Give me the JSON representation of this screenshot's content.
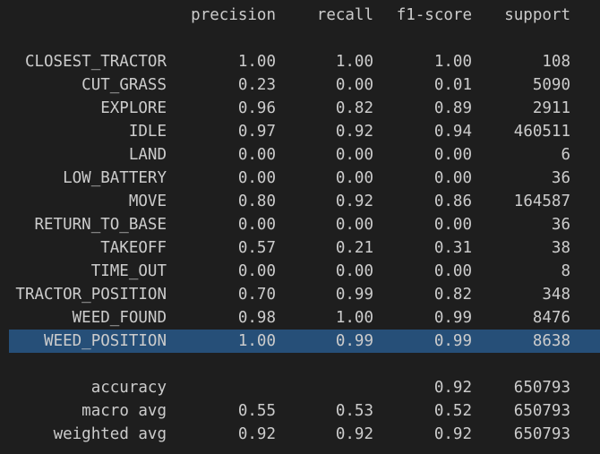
{
  "header": {
    "precision": "precision",
    "recall": "recall",
    "f1": "f1-score",
    "support": "support"
  },
  "rows": [
    {
      "label": "CLOSEST_TRACTOR",
      "precision": "1.00",
      "recall": "1.00",
      "f1": "1.00",
      "support": "108"
    },
    {
      "label": "CUT_GRASS",
      "precision": "0.23",
      "recall": "0.00",
      "f1": "0.01",
      "support": "5090"
    },
    {
      "label": "EXPLORE",
      "precision": "0.96",
      "recall": "0.82",
      "f1": "0.89",
      "support": "2911"
    },
    {
      "label": "IDLE",
      "precision": "0.97",
      "recall": "0.92",
      "f1": "0.94",
      "support": "460511"
    },
    {
      "label": "LAND",
      "precision": "0.00",
      "recall": "0.00",
      "f1": "0.00",
      "support": "6"
    },
    {
      "label": "LOW_BATTERY",
      "precision": "0.00",
      "recall": "0.00",
      "f1": "0.00",
      "support": "36"
    },
    {
      "label": "MOVE",
      "precision": "0.80",
      "recall": "0.92",
      "f1": "0.86",
      "support": "164587"
    },
    {
      "label": "RETURN_TO_BASE",
      "precision": "0.00",
      "recall": "0.00",
      "f1": "0.00",
      "support": "36"
    },
    {
      "label": "TAKEOFF",
      "precision": "0.57",
      "recall": "0.21",
      "f1": "0.31",
      "support": "38"
    },
    {
      "label": "TIME_OUT",
      "precision": "0.00",
      "recall": "0.00",
      "f1": "0.00",
      "support": "8"
    },
    {
      "label": "TRACTOR_POSITION",
      "precision": "0.70",
      "recall": "0.99",
      "f1": "0.82",
      "support": "348"
    },
    {
      "label": "WEED_FOUND",
      "precision": "0.98",
      "recall": "1.00",
      "f1": "0.99",
      "support": "8476"
    },
    {
      "label": "WEED_POSITION",
      "precision": "1.00",
      "recall": "0.99",
      "f1": "0.99",
      "support": "8638"
    }
  ],
  "summary": [
    {
      "label": "accuracy",
      "precision": "",
      "recall": "",
      "f1": "0.92",
      "support": "650793"
    },
    {
      "label": "macro avg",
      "precision": "0.55",
      "recall": "0.53",
      "f1": "0.52",
      "support": "650793"
    },
    {
      "label": "weighted avg",
      "precision": "0.92",
      "recall": "0.92",
      "f1": "0.92",
      "support": "650793"
    }
  ],
  "selected_row_label": "WEED_POSITION",
  "colors": {
    "background": "#1e1e1e",
    "text": "#cccccc",
    "selection": "#264f78"
  }
}
